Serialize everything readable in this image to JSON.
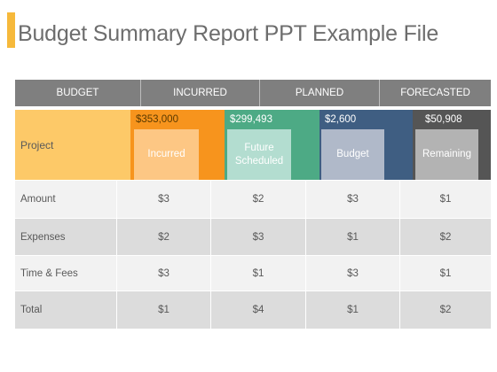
{
  "title": "Budget Summary Report PPT Example File",
  "colors": {
    "accent": "#f6b93b",
    "header_bg": "#7f7f7f",
    "orange": "#f7941d",
    "green": "#4daa85",
    "navy": "#3f5e82",
    "gray": "#555555",
    "yellow": "#fdc968"
  },
  "header": [
    "BUDGET",
    "INCURRED",
    "PLANNED",
    "FORECASTED"
  ],
  "project": {
    "label": "Project",
    "blocks": [
      {
        "value": "$353,000",
        "card": "Incurred"
      },
      {
        "value": "$299,493",
        "card": "Future Scheduled"
      },
      {
        "value": "$2,600",
        "card": "Budget"
      },
      {
        "value": "$50,908",
        "card": "Remaining"
      }
    ]
  },
  "rows": [
    {
      "label": "Amount",
      "cells": [
        "$3",
        "$2",
        "$3",
        "$1"
      ]
    },
    {
      "label": "Expenses",
      "cells": [
        "$2",
        "$3",
        "$1",
        "$2"
      ]
    },
    {
      "label": "Time & Fees",
      "cells": [
        "$3",
        "$1",
        "$3",
        "$1"
      ]
    },
    {
      "label": "Total",
      "cells": [
        "$1",
        "$4",
        "$1",
        "$2"
      ]
    }
  ]
}
